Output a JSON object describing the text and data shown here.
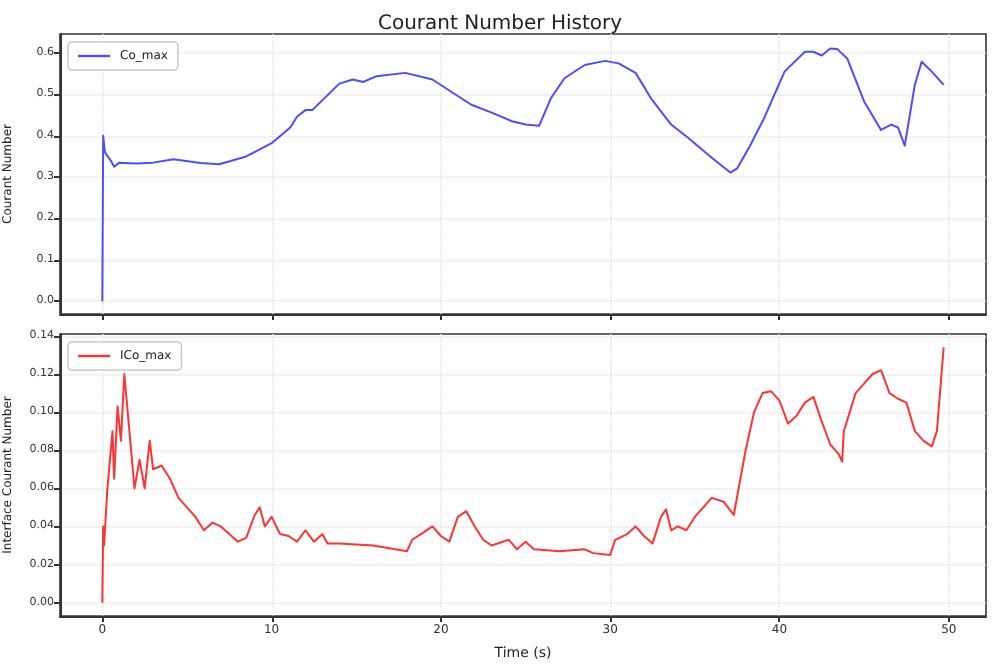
{
  "chart_data": [
    {
      "type": "line",
      "title": "Courant Number History",
      "ylabel": "Courant Number",
      "series": [
        {
          "name": "Co_max",
          "color": "#4d4dff",
          "x": [
            0,
            0.05,
            0.15,
            0.5,
            0.7,
            1,
            2,
            3,
            4.2,
            5.8,
            6.9,
            8.5,
            10,
            11.1,
            11.5,
            12,
            12.4,
            13.2,
            14,
            14.8,
            15.4,
            16.2,
            17.9,
            19.5,
            20.7,
            21.8,
            23,
            24.2,
            25,
            25.8,
            26.5,
            27.3,
            28.5,
            29.7,
            30.5,
            31.5,
            32.4,
            33.6,
            34.6,
            36,
            37.1,
            37.5,
            38.3,
            39.1,
            40.3,
            41.5,
            42,
            42.5,
            43,
            43.4,
            44,
            45,
            46,
            46.6,
            47,
            47.4,
            48,
            48.4,
            49,
            49.7
          ],
          "values": [
            0.0,
            0.4,
            0.36,
            0.34,
            0.325,
            0.335,
            0.333,
            0.335,
            0.343,
            0.334,
            0.331,
            0.35,
            0.382,
            0.42,
            0.446,
            0.462,
            0.462,
            0.494,
            0.526,
            0.536,
            0.53,
            0.544,
            0.552,
            0.536,
            0.504,
            0.475,
            0.456,
            0.435,
            0.427,
            0.424,
            0.491,
            0.539,
            0.571,
            0.581,
            0.575,
            0.552,
            0.491,
            0.427,
            0.395,
            0.347,
            0.311,
            0.321,
            0.379,
            0.443,
            0.555,
            0.603,
            0.603,
            0.594,
            0.611,
            0.61,
            0.587,
            0.483,
            0.414,
            0.427,
            0.42,
            0.376,
            0.524,
            0.579,
            0.555,
            0.523
          ]
        }
      ],
      "xlim": [
        -2.5,
        52.2
      ],
      "xticks": [
        0,
        10,
        20,
        30,
        40,
        50
      ],
      "ylim": [
        -0.031,
        0.646
      ],
      "yticks": [
        {
          "value": 0,
          "label": "0.0"
        },
        {
          "value": 0.1,
          "label": "0.1"
        },
        {
          "value": 0.2,
          "label": "0.2"
        },
        {
          "value": 0.3,
          "label": "0.3"
        },
        {
          "value": 0.4,
          "label": "0.4"
        },
        {
          "value": 0.5,
          "label": "0.5"
        },
        {
          "value": 0.6,
          "label": "0.6"
        }
      ],
      "tick_labels": "y",
      "grid": true,
      "legend": "top left",
      "marker": "none",
      "line_style": "solid"
    },
    {
      "type": "line",
      "xlabel": "Time (s)",
      "ylabel": "Interface Courant Number",
      "series": [
        {
          "name": "ICo_max",
          "color": "#ff3333",
          "x": [
            0,
            0.05,
            0.1,
            0.3,
            0.6,
            0.7,
            0.9,
            1.1,
            1.3,
            1.5,
            1.7,
            1.9,
            2.2,
            2.5,
            2.8,
            3,
            3.5,
            4,
            4.5,
            5,
            5.5,
            6,
            6.5,
            7,
            7.5,
            8,
            8.5,
            9,
            9.3,
            9.6,
            10,
            10.5,
            11,
            11.5,
            12,
            12.5,
            13,
            13.3,
            14,
            16,
            18,
            18.3,
            19,
            19.5,
            20,
            20.5,
            21,
            21.5,
            22,
            22.5,
            23,
            24,
            24.5,
            25,
            25.5,
            27,
            28.5,
            29,
            30,
            30.3,
            31,
            31.5,
            32,
            32.5,
            33,
            33.3,
            33.6,
            34,
            34.5,
            35,
            36,
            36.7,
            37.3,
            38,
            38.5,
            39,
            39.5,
            40,
            40.5,
            41,
            41.5,
            42,
            42.5,
            43,
            43.5,
            43.7,
            43.8,
            44.5,
            45,
            45.5,
            46,
            46.5,
            47,
            47.5,
            48,
            48.5,
            49,
            49.3,
            49.7
          ],
          "values": [
            0.0,
            0.04,
            0.03,
            0.06,
            0.09,
            0.065,
            0.103,
            0.085,
            0.12,
            0.1,
            0.08,
            0.06,
            0.075,
            0.06,
            0.085,
            0.07,
            0.072,
            0.065,
            0.055,
            0.05,
            0.045,
            0.038,
            0.042,
            0.04,
            0.036,
            0.032,
            0.034,
            0.046,
            0.05,
            0.04,
            0.045,
            0.036,
            0.035,
            0.032,
            0.038,
            0.032,
            0.036,
            0.031,
            0.031,
            0.03,
            0.027,
            0.033,
            0.037,
            0.04,
            0.035,
            0.032,
            0.045,
            0.048,
            0.04,
            0.033,
            0.03,
            0.033,
            0.028,
            0.032,
            0.028,
            0.027,
            0.028,
            0.026,
            0.025,
            0.033,
            0.036,
            0.04,
            0.035,
            0.031,
            0.045,
            0.049,
            0.038,
            0.04,
            0.038,
            0.045,
            0.055,
            0.053,
            0.046,
            0.08,
            0.1,
            0.11,
            0.111,
            0.106,
            0.094,
            0.098,
            0.105,
            0.108,
            0.095,
            0.083,
            0.078,
            0.074,
            0.09,
            0.11,
            0.115,
            0.12,
            0.122,
            0.11,
            0.107,
            0.105,
            0.09,
            0.085,
            0.082,
            0.09,
            0.134
          ]
        }
      ],
      "xlim": [
        -2.5,
        52.2
      ],
      "xticks": [
        0,
        10,
        20,
        30,
        40,
        50
      ],
      "ylim": [
        -0.007,
        0.141
      ],
      "yticks": [
        {
          "value": 0,
          "label": "0.00"
        },
        {
          "value": 0.02,
          "label": "0.02"
        },
        {
          "value": 0.04,
          "label": "0.04"
        },
        {
          "value": 0.06,
          "label": "0.06"
        },
        {
          "value": 0.08,
          "label": "0.08"
        },
        {
          "value": 0.1,
          "label": "0.10"
        },
        {
          "value": 0.12,
          "label": "0.12"
        },
        {
          "value": 0.14,
          "label": "0.14"
        }
      ],
      "grid": true,
      "legend": "top left",
      "marker": "none",
      "line_style": "solid"
    }
  ]
}
